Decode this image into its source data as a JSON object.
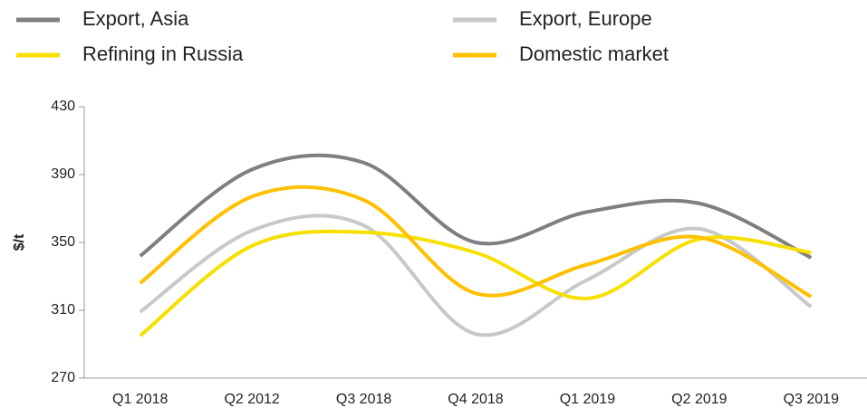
{
  "chart_data": {
    "type": "line",
    "y_label": "$/t",
    "categories": [
      "Q1 2018",
      "Q2 2012",
      "Q3 2018",
      "Q4 2018",
      "Q1 2019",
      "Q2 2019",
      "Q3 2019"
    ],
    "series": [
      {
        "name": "Export, Asia",
        "color": "#7f7f7f",
        "values": [
          342,
          393,
          397,
          350,
          368,
          373,
          341
        ]
      },
      {
        "name": "Export, Europe",
        "color": "#c8c8c8",
        "values": [
          309,
          357,
          360,
          296,
          328,
          358,
          312
        ]
      },
      {
        "name": "Refining in Russia",
        "color": "#f7e000",
        "values": [
          295,
          348,
          356,
          344,
          317,
          352,
          344
        ]
      },
      {
        "name": "Domestic market",
        "color": "#ffc000",
        "values": [
          326,
          377,
          375,
          320,
          337,
          353,
          318
        ]
      }
    ],
    "ylim": [
      270,
      430
    ],
    "yticks": [
      270,
      310,
      350,
      390,
      430
    ],
    "grid": false,
    "legend": "top"
  }
}
